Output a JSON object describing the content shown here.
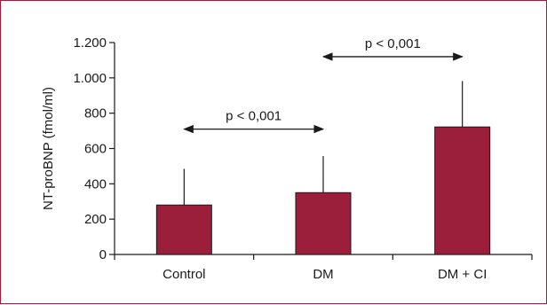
{
  "chart_data": {
    "type": "bar",
    "categories": [
      "Control",
      "DM",
      "DM + CI"
    ],
    "values": [
      280,
      350,
      722
    ],
    "error_upper": [
      485,
      557,
      982
    ],
    "ylabel": "NT-proBNP (fmol/ml)",
    "ylim": [
      0,
      1200
    ],
    "yticks": [
      0,
      200,
      400,
      600,
      800,
      1000,
      1200
    ],
    "ytick_labels": [
      "0",
      "200",
      "400",
      "600",
      "800",
      "1.000",
      "1.200"
    ],
    "bar_color": "#9b1f3a",
    "grid": false,
    "annotations": [
      {
        "text": "p < 0,001",
        "from": "Control",
        "to": "DM",
        "y": 710
      },
      {
        "text": "p < 0,001",
        "from": "DM",
        "to": "DM + CI",
        "y": 1120
      }
    ]
  }
}
